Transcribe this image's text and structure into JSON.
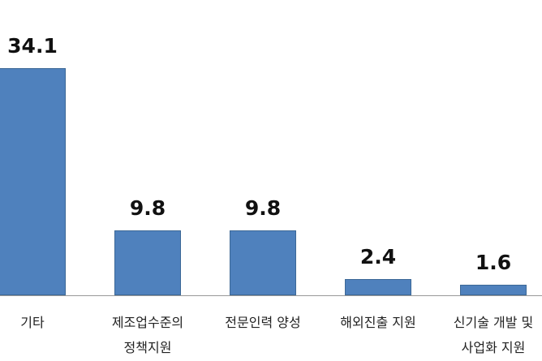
{
  "chart_data": {
    "type": "bar",
    "categories": [
      "기타",
      "제조업수준의 정책지원",
      "전문인력 양성",
      "해외진출 지원",
      "신기술 개발 및 사업화 지원"
    ],
    "values": [
      34.1,
      9.8,
      9.8,
      2.4,
      1.6
    ],
    "color": "#4f81bd"
  }
}
